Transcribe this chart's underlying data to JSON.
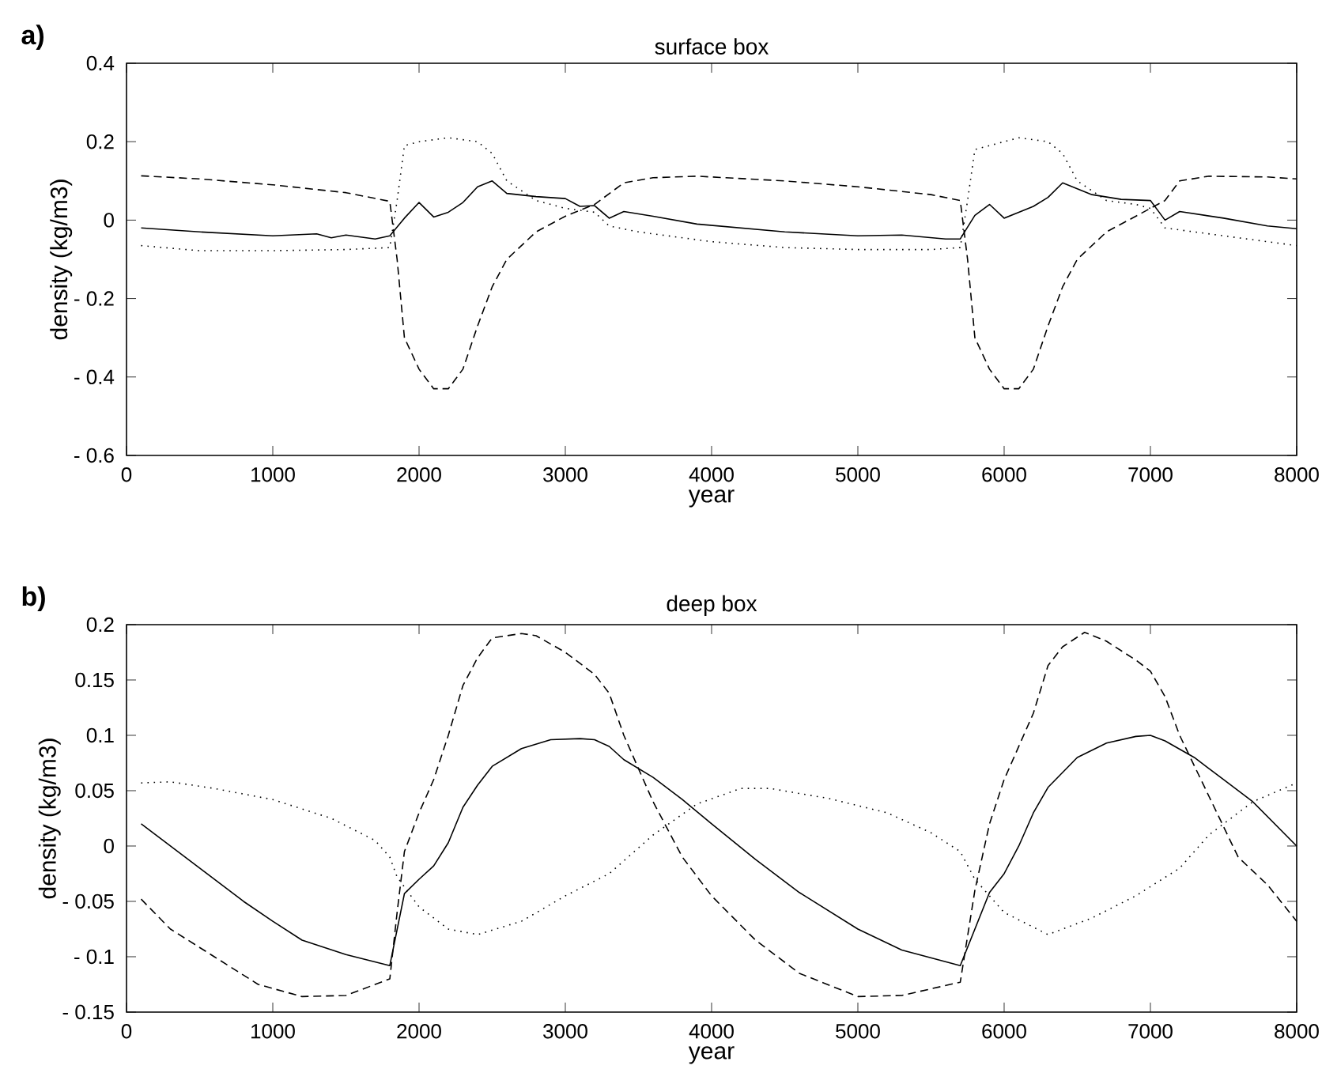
{
  "chart_data": [
    {
      "type": "line",
      "title": "surface box",
      "xlabel": "year",
      "ylabel": "density (kg/m3)",
      "annotations": [
        "a)"
      ],
      "marker": "none",
      "xlim": [
        0,
        8000
      ],
      "xticks": [
        0,
        1000,
        2000,
        3000,
        4000,
        5000,
        6000,
        7000,
        8000
      ],
      "ylim": [
        -0.6,
        0.4
      ],
      "yticks": [
        {
          "value": -0.6,
          "label": "- 0.6"
        },
        {
          "value": -0.4,
          "label": "- 0.4"
        },
        {
          "value": -0.2,
          "label": "- 0.2"
        },
        0,
        0.2,
        0.4
      ],
      "series": [
        {
          "color": "#000000",
          "line_style": "solid",
          "x": [
            100,
            500,
            1000,
            1300,
            1400,
            1500,
            1700,
            1800,
            1900,
            2000,
            2100,
            2200,
            2300,
            2400,
            2500,
            2600,
            2800,
            3000,
            3100,
            3200,
            3300,
            3400,
            3600,
            3900,
            4500,
            5000,
            5300,
            5600,
            5700,
            5800,
            5900,
            6000,
            6100,
            6200,
            6300,
            6400,
            6500,
            6600,
            6800,
            7000,
            7100,
            7200,
            7500,
            7800,
            8000
          ],
          "values": [
            -0.02,
            -0.03,
            -0.04,
            -0.035,
            -0.045,
            -0.038,
            -0.048,
            -0.04,
            0.005,
            0.045,
            0.008,
            0.02,
            0.045,
            0.085,
            0.1,
            0.068,
            0.06,
            0.055,
            0.035,
            0.037,
            0.005,
            0.022,
            0.01,
            -0.01,
            -0.03,
            -0.04,
            -0.038,
            -0.048,
            -0.048,
            0.012,
            0.04,
            0.005,
            0.02,
            0.035,
            0.058,
            0.095,
            0.08,
            0.065,
            0.053,
            0.05,
            0.0,
            0.022,
            0.005,
            -0.015,
            -0.022
          ]
        },
        {
          "color": "#000000",
          "line_style": "dashed",
          "x": [
            100,
            500,
            1000,
            1500,
            1800,
            1850,
            1900,
            2000,
            2100,
            2200,
            2300,
            2400,
            2500,
            2600,
            2800,
            3000,
            3200,
            3400,
            3600,
            3900,
            4500,
            5000,
            5500,
            5700,
            5750,
            5800,
            5900,
            6000,
            6100,
            6200,
            6300,
            6400,
            6500,
            6700,
            6900,
            7100,
            7200,
            7400,
            7800,
            8000
          ],
          "values": [
            0.113,
            0.105,
            0.09,
            0.07,
            0.048,
            -0.1,
            -0.3,
            -0.38,
            -0.43,
            -0.43,
            -0.38,
            -0.27,
            -0.17,
            -0.1,
            -0.03,
            0.01,
            0.04,
            0.095,
            0.108,
            0.112,
            0.1,
            0.085,
            0.065,
            0.05,
            -0.1,
            -0.3,
            -0.38,
            -0.43,
            -0.43,
            -0.38,
            -0.27,
            -0.17,
            -0.1,
            -0.03,
            0.01,
            0.05,
            0.1,
            0.112,
            0.11,
            0.105
          ]
        },
        {
          "color": "#000000",
          "line_style": "dotted",
          "x": [
            100,
            500,
            1000,
            1500,
            1800,
            1850,
            1900,
            2000,
            2200,
            2400,
            2500,
            2600,
            2800,
            3000,
            3200,
            3300,
            3500,
            4000,
            4500,
            5000,
            5500,
            5700,
            5750,
            5800,
            5900,
            6100,
            6300,
            6400,
            6500,
            6700,
            6900,
            7000,
            7100,
            7300,
            7600,
            8000
          ],
          "values": [
            -0.065,
            -0.078,
            -0.078,
            -0.075,
            -0.07,
            0.05,
            0.19,
            0.2,
            0.21,
            0.2,
            0.17,
            0.1,
            0.05,
            0.03,
            0.02,
            -0.015,
            -0.03,
            -0.055,
            -0.07,
            -0.075,
            -0.075,
            -0.07,
            0.05,
            0.18,
            0.19,
            0.21,
            0.2,
            0.17,
            0.1,
            0.05,
            0.04,
            0.03,
            -0.02,
            -0.03,
            -0.045,
            -0.065
          ]
        }
      ]
    },
    {
      "type": "line",
      "title": "deep box",
      "xlabel": "year",
      "ylabel": "density (kg/m3)",
      "annotations": [
        "b)"
      ],
      "marker": "none",
      "xlim": [
        0,
        8000
      ],
      "xticks": [
        0,
        1000,
        2000,
        3000,
        4000,
        5000,
        6000,
        7000,
        8000
      ],
      "ylim": [
        -0.15,
        0.2
      ],
      "yticks": [
        {
          "value": -0.15,
          "label": "- 0.15"
        },
        {
          "value": -0.1,
          "label": "- 0.1"
        },
        {
          "value": -0.05,
          "label": "- 0.05"
        },
        0,
        0.05,
        0.1,
        0.15,
        0.2
      ],
      "series": [
        {
          "color": "#000000",
          "line_style": "solid",
          "x": [
            100,
            300,
            500,
            800,
            1000,
            1200,
            1500,
            1800,
            1900,
            2000,
            2100,
            2200,
            2300,
            2400,
            2500,
            2700,
            2900,
            3100,
            3200,
            3300,
            3400,
            3600,
            3800,
            4000,
            4300,
            4600,
            5000,
            5300,
            5700,
            5800,
            5900,
            6000,
            6100,
            6200,
            6300,
            6500,
            6700,
            6900,
            7000,
            7100,
            7300,
            7500,
            7700,
            8000
          ],
          "values": [
            0.02,
            0.0,
            -0.02,
            -0.05,
            -0.068,
            -0.085,
            -0.098,
            -0.108,
            -0.043,
            -0.03,
            -0.018,
            0.003,
            0.035,
            0.055,
            0.072,
            0.088,
            0.096,
            0.097,
            0.096,
            0.09,
            0.078,
            0.062,
            0.042,
            0.02,
            -0.012,
            -0.042,
            -0.075,
            -0.094,
            -0.108,
            -0.075,
            -0.042,
            -0.025,
            0.0,
            0.03,
            0.053,
            0.08,
            0.093,
            0.099,
            0.1,
            0.095,
            0.08,
            0.06,
            0.04,
            0.0
          ]
        },
        {
          "color": "#000000",
          "line_style": "dashed",
          "x": [
            100,
            300,
            600,
            900,
            1200,
            1500,
            1800,
            1850,
            1900,
            2000,
            2100,
            2200,
            2300,
            2400,
            2500,
            2700,
            2800,
            3000,
            3200,
            3300,
            3400,
            3600,
            3800,
            4000,
            4300,
            4600,
            5000,
            5300,
            5700,
            5800,
            5900,
            6000,
            6200,
            6300,
            6400,
            6550,
            6700,
            6900,
            7000,
            7100,
            7200,
            7400,
            7600,
            7800,
            8000
          ],
          "values": [
            -0.048,
            -0.075,
            -0.1,
            -0.125,
            -0.136,
            -0.135,
            -0.12,
            -0.06,
            -0.005,
            0.03,
            0.06,
            0.1,
            0.145,
            0.17,
            0.188,
            0.192,
            0.19,
            0.175,
            0.155,
            0.138,
            0.1,
            0.04,
            -0.01,
            -0.045,
            -0.085,
            -0.115,
            -0.136,
            -0.135,
            -0.123,
            -0.04,
            0.02,
            0.06,
            0.12,
            0.163,
            0.18,
            0.193,
            0.185,
            0.168,
            0.158,
            0.135,
            0.1,
            0.045,
            -0.01,
            -0.035,
            -0.068
          ]
        },
        {
          "color": "#000000",
          "line_style": "dotted",
          "x": [
            100,
            300,
            600,
            1000,
            1400,
            1700,
            1800,
            1850,
            2000,
            2200,
            2400,
            2700,
            3000,
            3300,
            3600,
            3900,
            4200,
            4400,
            4800,
            5200,
            5500,
            5700,
            5800,
            6000,
            6300,
            6600,
            6900,
            7200,
            7400,
            7700,
            8000
          ],
          "values": [
            0.057,
            0.058,
            0.052,
            0.042,
            0.025,
            0.005,
            -0.01,
            -0.028,
            -0.055,
            -0.075,
            -0.08,
            -0.068,
            -0.045,
            -0.025,
            0.01,
            0.038,
            0.052,
            0.052,
            0.043,
            0.03,
            0.012,
            -0.005,
            -0.03,
            -0.06,
            -0.08,
            -0.065,
            -0.045,
            -0.02,
            0.01,
            0.04,
            0.057
          ]
        }
      ]
    }
  ]
}
